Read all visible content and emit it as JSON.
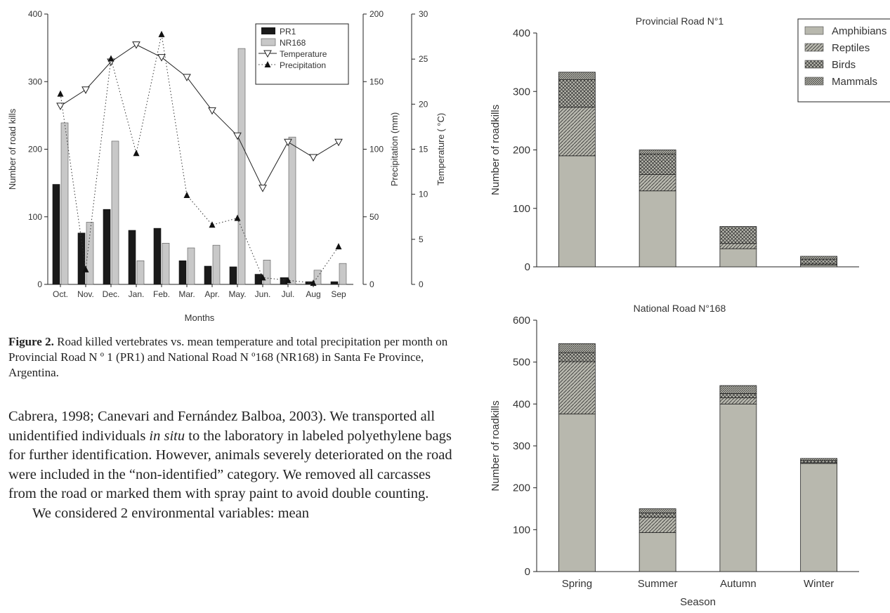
{
  "caption": {
    "label": "Figure 2.",
    "text": "Road killed vertebrates vs. mean temperature and total precipitation per month on Provincial Road N º 1 (PR1) and National Road N º168 (NR168) in Santa Fe Province, Argentina."
  },
  "body": {
    "para1_a": "Cabrera, 1998; Canevari and Fernández Balboa, 2003). We transported all unidentified individuals ",
    "para1_italic": "in situ",
    "para1_b": " to the laboratory in labeled polyethylene bags for further identification. However, animals severely deteriorated on the road were included in the “non-identified” category. We removed all carcasses from the road or marked them with spray paint to avoid double counting.",
    "para2": "We considered 2 environmental variables: mean"
  },
  "chart_data": [
    {
      "type": "bar",
      "categories": [
        "Oct.",
        "Nov.",
        "Dec.",
        "Jan.",
        "Feb.",
        "Mar.",
        "Apr.",
        "May.",
        "Jun.",
        "Jul.",
        "Aug",
        "Sep"
      ],
      "xlabel": "Months",
      "ylabel": "Number of road kills",
      "ylim": [
        0,
        400
      ],
      "yticks": [
        "0",
        "100",
        "200",
        "300",
        "400"
      ],
      "y2label": "Precipitation (mm)",
      "y2lim": [
        0,
        200
      ],
      "y2ticks": [
        "0",
        "50",
        "100",
        "150",
        "200"
      ],
      "y3label": "Temperature ( °C)",
      "y3lim": [
        0,
        30
      ],
      "y3ticks": [
        "0",
        "5",
        "10",
        "15",
        "20",
        "25",
        "30"
      ],
      "legend_position": "top-right",
      "series": [
        {
          "name": "PR1",
          "kind": "bar",
          "axis": "left",
          "color": "#1a1a1a",
          "values": [
            148,
            76,
            111,
            80,
            83,
            35,
            27,
            26,
            15,
            10,
            4,
            4
          ]
        },
        {
          "name": "NR168",
          "kind": "bar",
          "axis": "left",
          "color": "#c8c8c8",
          "values": [
            239,
            92,
            212,
            35,
            61,
            54,
            58,
            349,
            36,
            218,
            21,
            31
          ]
        },
        {
          "name": "Temperature",
          "kind": "line",
          "axis": "temperature",
          "marker": "triangle-down-open",
          "values": [
            19.8,
            21.6,
            24.7,
            26.6,
            25.2,
            23.0,
            19.3,
            16.5,
            10.7,
            15.8,
            14.1,
            15.8
          ]
        },
        {
          "name": "Precipitation",
          "kind": "line",
          "axis": "precipitation",
          "marker": "triangle-up-filled",
          "dash": "dotted",
          "values": [
            141,
            11,
            167,
            97,
            185,
            66,
            44,
            49,
            5,
            3,
            1,
            28
          ]
        }
      ]
    },
    {
      "type": "bar",
      "stacked": true,
      "title": "Provincial Road N°1",
      "categories": [
        "Spring",
        "Summer",
        "Autumn",
        "Winter"
      ],
      "ylabel": "Number of roadkills",
      "ylim": [
        0,
        400
      ],
      "yticks": [
        "0",
        "100",
        "200",
        "300",
        "400"
      ],
      "legend_position": "top-right",
      "series": [
        {
          "name": "Amphibians",
          "values": [
            190,
            130,
            31,
            3
          ]
        },
        {
          "name": "Reptiles",
          "values": [
            83,
            28,
            9,
            2
          ]
        },
        {
          "name": "Birds",
          "values": [
            47,
            35,
            29,
            8
          ]
        },
        {
          "name": "Mammals",
          "values": [
            13,
            7,
            0,
            5
          ]
        }
      ]
    },
    {
      "type": "bar",
      "stacked": true,
      "title": "National Road N°168",
      "categories": [
        "Spring",
        "Summer",
        "Autumn",
        "Winter"
      ],
      "xlabel": "Season",
      "ylabel": "Number of roadkills",
      "ylim": [
        0,
        600
      ],
      "yticks": [
        "0",
        "100",
        "200",
        "300",
        "400",
        "500",
        "600"
      ],
      "series": [
        {
          "name": "Amphibians",
          "values": [
            376,
            93,
            400,
            258
          ]
        },
        {
          "name": "Reptiles",
          "values": [
            125,
            37,
            15,
            2
          ]
        },
        {
          "name": "Birds",
          "values": [
            22,
            10,
            10,
            5
          ]
        },
        {
          "name": "Mammals",
          "values": [
            21,
            10,
            19,
            5
          ]
        }
      ]
    }
  ]
}
